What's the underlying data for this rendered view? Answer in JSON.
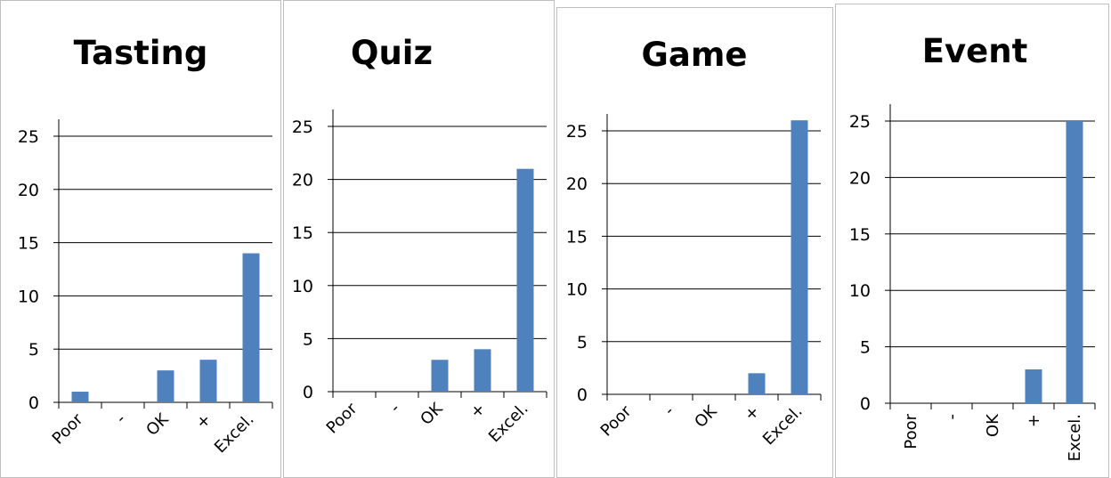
{
  "chart_data": [
    {
      "type": "bar",
      "title": "Tasting",
      "categories": [
        "Poor",
        "-",
        "OK",
        "+",
        "Excel."
      ],
      "values": [
        1,
        0,
        3,
        4,
        14
      ],
      "ylim": [
        0,
        25
      ],
      "yticks": [
        "0",
        "5",
        "10",
        "15",
        "20",
        "25"
      ],
      "grid": true,
      "bar_color": "#4f81bd"
    },
    {
      "type": "bar",
      "title": "Quiz",
      "categories": [
        "Poor",
        "-",
        "OK",
        "+",
        "Excel."
      ],
      "values": [
        0,
        0,
        3,
        4,
        21
      ],
      "ylim": [
        0,
        25
      ],
      "yticks": [
        "0",
        "5",
        "10",
        "15",
        "20",
        "25"
      ],
      "grid": true,
      "bar_color": "#4f81bd"
    },
    {
      "type": "bar",
      "title": "Game",
      "categories": [
        "Poor",
        "-",
        "OK",
        "+",
        "Excel."
      ],
      "values": [
        0,
        0,
        0,
        2,
        26
      ],
      "ylim": [
        0,
        25
      ],
      "yticks": [
        "0",
        "5",
        "10",
        "15",
        "20",
        "25"
      ],
      "grid": true,
      "bar_color": "#4f81bd"
    },
    {
      "type": "bar",
      "title": "Event",
      "categories": [
        "Poor",
        "-",
        "OK",
        "+",
        "Excel."
      ],
      "values": [
        0,
        0,
        0,
        3,
        25
      ],
      "ylim": [
        0,
        25
      ],
      "yticks": [
        "0",
        "5",
        "10",
        "15",
        "20",
        "25"
      ],
      "grid": true,
      "bar_color": "#4f81bd"
    }
  ]
}
